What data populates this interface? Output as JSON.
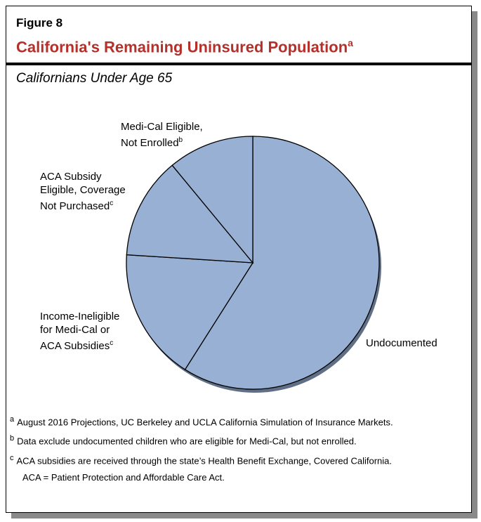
{
  "figure_label": "Figure 8",
  "title": "California's Remaining Uninsured Population",
  "title_sup": "a",
  "subtitle": "Californians Under Age 65",
  "chart_data": {
    "type": "pie",
    "slices": [
      {
        "label": "Undocumented",
        "sup": "",
        "value": 59
      },
      {
        "label": "Income-Ineligible for Medi-Cal or ACA Subsidies",
        "sup": "c",
        "value": 17
      },
      {
        "label": "ACA Subsidy Eligible, Coverage Not Purchased",
        "sup": "c",
        "value": 13
      },
      {
        "label": "Medi-Cal Eligible, Not Enrolled",
        "sup": "b",
        "value": 11
      }
    ],
    "start_angle": "top, clockwise",
    "colors": {
      "fill": "#98b0d4",
      "shadow": "#5f6f86",
      "stroke": "#000000",
      "title": "#b5302a"
    }
  },
  "labels": {
    "undocumented": "Undocumented",
    "income_1": "Income-Ineligible",
    "income_2": "for Medi-Cal or",
    "income_3": "ACA Subsidies",
    "aca_1": "ACA Subsidy",
    "aca_2": "Eligible, Coverage",
    "aca_3": "Not Purchased",
    "medi_1": "Medi-Cal Eligible,",
    "medi_2": "Not Enrolled"
  },
  "notes": [
    {
      "sup": "a",
      "text": "August 2016 Projections, UC Berkeley and UCLA California Simulation of Insurance Markets."
    },
    {
      "sup": "b",
      "text": "Data exclude undocumented children who are eligible for Medi-Cal, but not enrolled."
    },
    {
      "sup": "c",
      "text": "ACA subsidies are received through the state’s Health Benefit Exchange, Covered California."
    },
    {
      "sup": "",
      "text": "ACA = Patient Protection and Affordable Care Act."
    }
  ]
}
